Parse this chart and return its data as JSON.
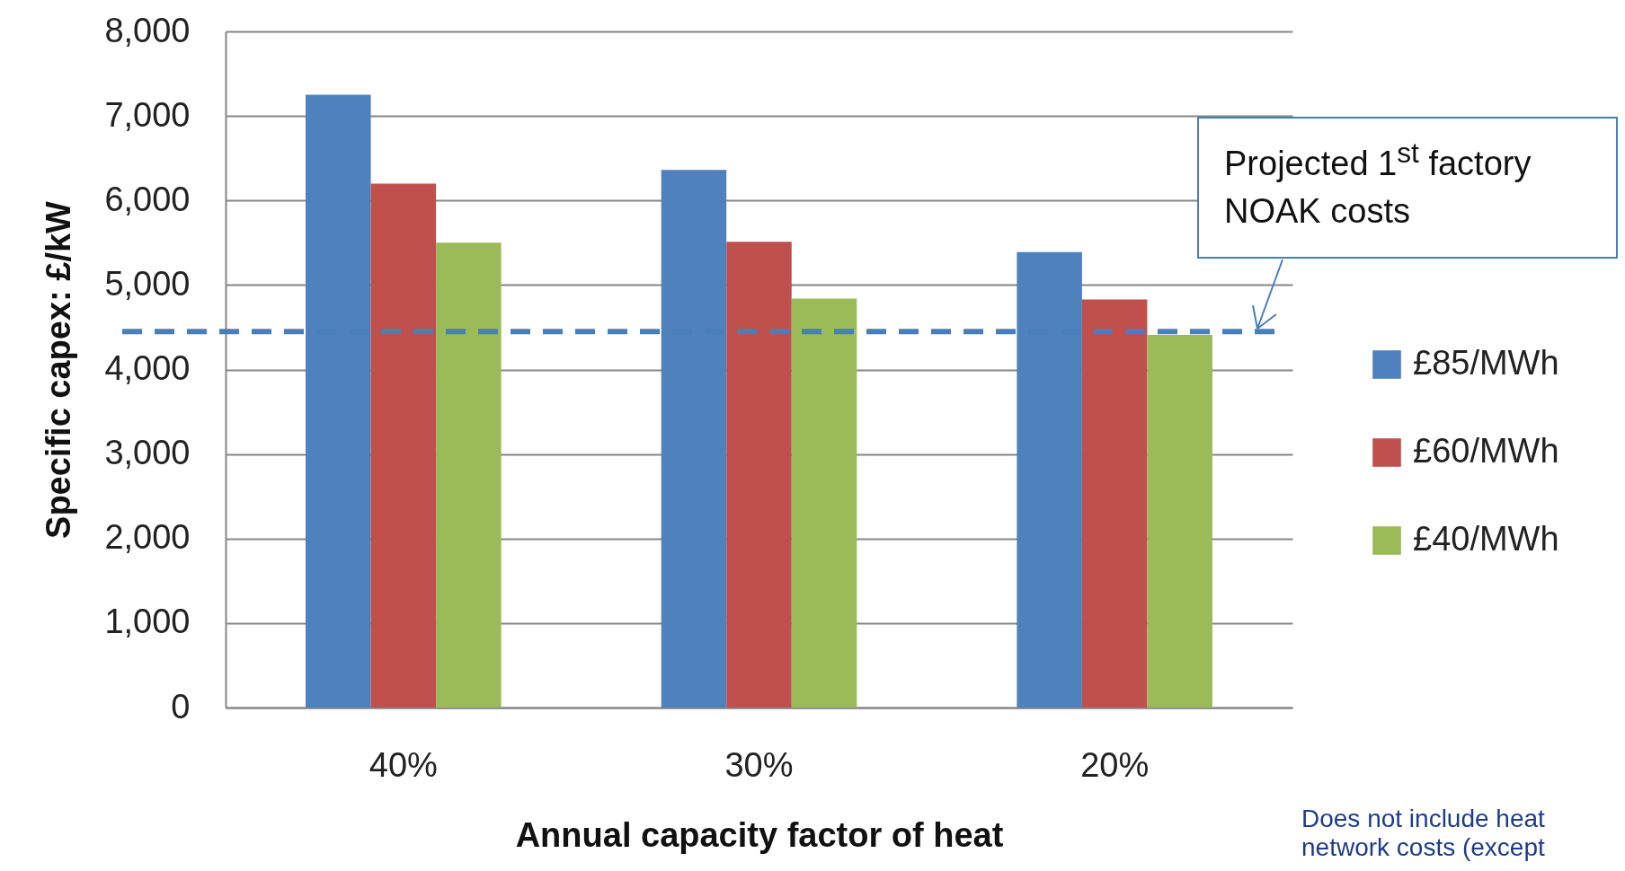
{
  "chart_data": {
    "type": "bar",
    "xlabel": "Annual capacity factor of heat",
    "ylabel": "Specific capex: £/kW",
    "categories": [
      "40%",
      "30%",
      "20%"
    ],
    "series": [
      {
        "name": "£85/MWh",
        "color": "#4f81bd",
        "values": [
          7250,
          6360,
          5390
        ]
      },
      {
        "name": "£60/MWh",
        "color": "#c0504d",
        "values": [
          6200,
          5510,
          4830
        ]
      },
      {
        "name": "£40/MWh",
        "color": "#9bbb59",
        "values": [
          5500,
          4840,
          4410
        ]
      }
    ],
    "ylim": [
      0,
      8000
    ],
    "yticks": [
      0,
      {
        "value": 1000,
        "label": "1,000"
      },
      {
        "value": 2000,
        "label": "2,000"
      },
      {
        "value": 3000,
        "label": "3,000"
      },
      {
        "value": 4000,
        "label": "4,000"
      },
      {
        "value": 5000,
        "label": "5,000"
      },
      {
        "value": 6000,
        "label": "6,000"
      },
      {
        "value": 7000,
        "label": "7,000"
      },
      {
        "value": 8000,
        "label": "8,000"
      }
    ],
    "grid": "y",
    "legend": "right",
    "ref_lines": [
      {
        "axis": "y",
        "value": 4450,
        "label": "Projected 1$^{st}$ factory NOAK costs",
        "color": "#4a7ebb",
        "line_style": "dashed"
      }
    ],
    "annotations": [
      "Does not include heat network costs (except"
    ]
  }
}
